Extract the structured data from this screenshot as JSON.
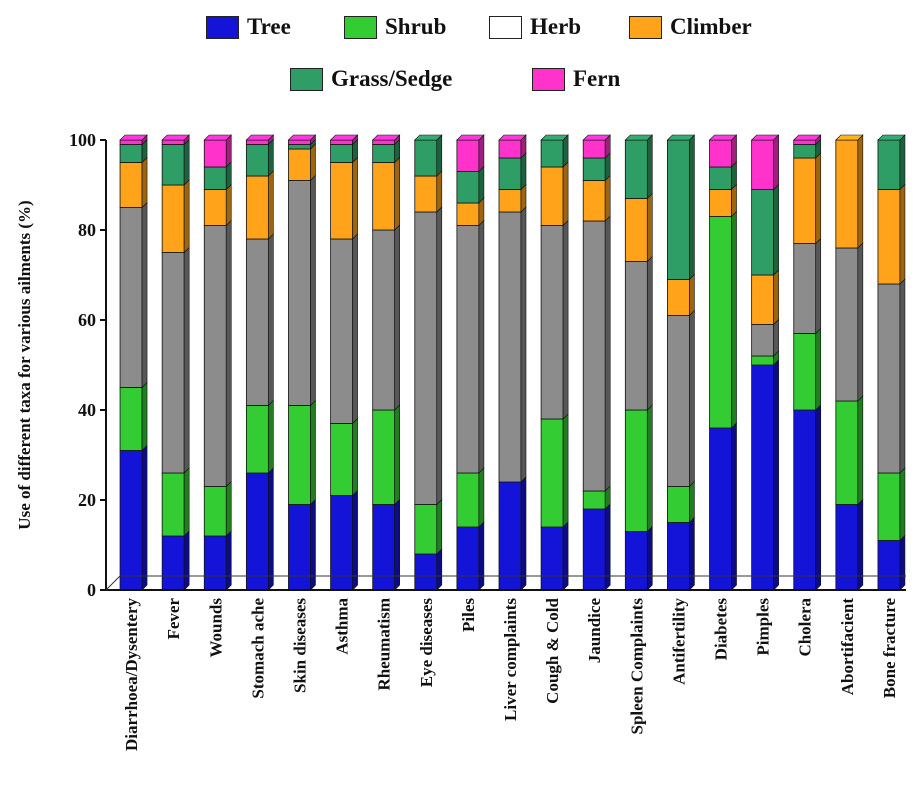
{
  "chart_data": {
    "type": "bar",
    "stacked": true,
    "title": "",
    "xlabel": "",
    "ylabel": "Use of different taxa for various ailments (%)",
    "ylim": [
      0,
      100
    ],
    "yticks": [
      "0",
      "20",
      "40",
      "60",
      "80",
      "100"
    ],
    "grid": false,
    "legend_position": "top",
    "categories": [
      "Diarrhoea/Dysentery",
      "Fever",
      "Wounds",
      "Stomach ache",
      "Skin diseases",
      "Asthma",
      "Rheumatism",
      "Eye diseases",
      "Piles",
      "Liver complaints",
      "Cough & Cold",
      "Jaundice",
      "Spleen Complaints",
      "Antifertility",
      "Diabetes",
      "Pimples",
      "Cholera",
      "Abortifacient",
      "Bone fracture"
    ],
    "series": [
      {
        "name": "Tree",
        "color": "#1414d8",
        "values": [
          31,
          12,
          12,
          26,
          19,
          21,
          19,
          8,
          14,
          24,
          14,
          18,
          13,
          15,
          36,
          50,
          40,
          19,
          11
        ]
      },
      {
        "name": "Shrub",
        "color": "#33cc33",
        "values": [
          14,
          14,
          11,
          15,
          22,
          16,
          21,
          11,
          12,
          0,
          24,
          4,
          27,
          8,
          47,
          2,
          17,
          23,
          15
        ]
      },
      {
        "name": "Herb",
        "color": "#8c8c8c",
        "values": [
          40,
          49,
          58,
          37,
          50,
          41,
          40,
          65,
          55,
          60,
          43,
          60,
          33,
          38,
          0,
          7,
          20,
          34,
          42
        ]
      },
      {
        "name": "Climber",
        "color": "#ffa31a",
        "values": [
          10,
          15,
          8,
          14,
          7,
          17,
          15,
          8,
          5,
          5,
          13,
          9,
          14,
          8,
          6,
          11,
          19,
          24,
          21
        ]
      },
      {
        "name": "Grass/Sedge",
        "color": "#2f9e66",
        "values": [
          4,
          9,
          5,
          7,
          1,
          4,
          4,
          8,
          7,
          7,
          6,
          5,
          13,
          31,
          5,
          19,
          3,
          0,
          11
        ]
      },
      {
        "name": "Fern",
        "color": "#ff33cc",
        "values": [
          1,
          1,
          6,
          1,
          1,
          1,
          1,
          0,
          7,
          4,
          0,
          4,
          0,
          0,
          6,
          11,
          1,
          0,
          0
        ]
      }
    ]
  }
}
